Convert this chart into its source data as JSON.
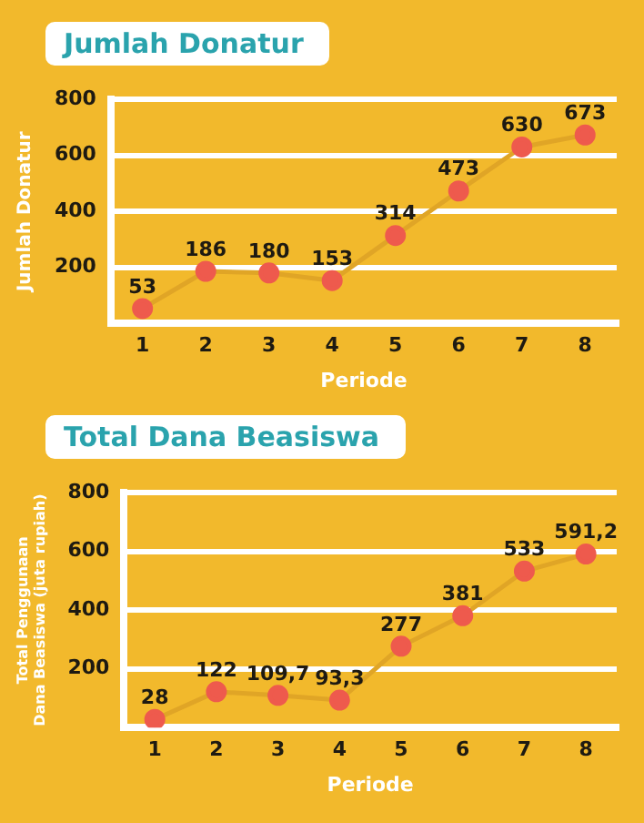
{
  "chart_data": [
    {
      "type": "line",
      "title": "Jumlah Donatur",
      "xlabel": "Periode",
      "ylabel": "Jumlah Donatur",
      "categories": [
        "1",
        "2",
        "3",
        "4",
        "5",
        "6",
        "7",
        "8"
      ],
      "series": [
        {
          "color": "#e0a526",
          "values": [
            53,
            186,
            180,
            153,
            314,
            473,
            630,
            673
          ]
        }
      ],
      "ylim": [
        0,
        800
      ],
      "yticks": [
        {
          "value": 0,
          "label": null
        },
        200,
        400,
        600,
        800
      ],
      "grid": "y",
      "marker": "circle",
      "data_labels": true,
      "legend": false
    },
    {
      "type": "line",
      "title": "Total Dana Beasiswa",
      "xlabel": "Periode",
      "ylabel": "Total Penggunaan\nDana Beasiswa (juta rupiah)",
      "categories": [
        "1",
        "2",
        "3",
        "4",
        "5",
        "6",
        "7",
        "8"
      ],
      "series": [
        {
          "color": "#e0a526",
          "values": [
            28,
            122,
            109.7,
            93.3,
            277,
            381,
            533,
            591.2
          ],
          "value_labels": [
            "28",
            "122",
            "109,7",
            "93,3",
            "277",
            "381",
            "533",
            "591,2"
          ]
        }
      ],
      "ylim": [
        0,
        800
      ],
      "yticks": [
        {
          "value": 0,
          "label": null
        },
        200,
        400,
        600,
        800
      ],
      "grid": "y",
      "marker": "circle",
      "legend": false
    }
  ]
}
